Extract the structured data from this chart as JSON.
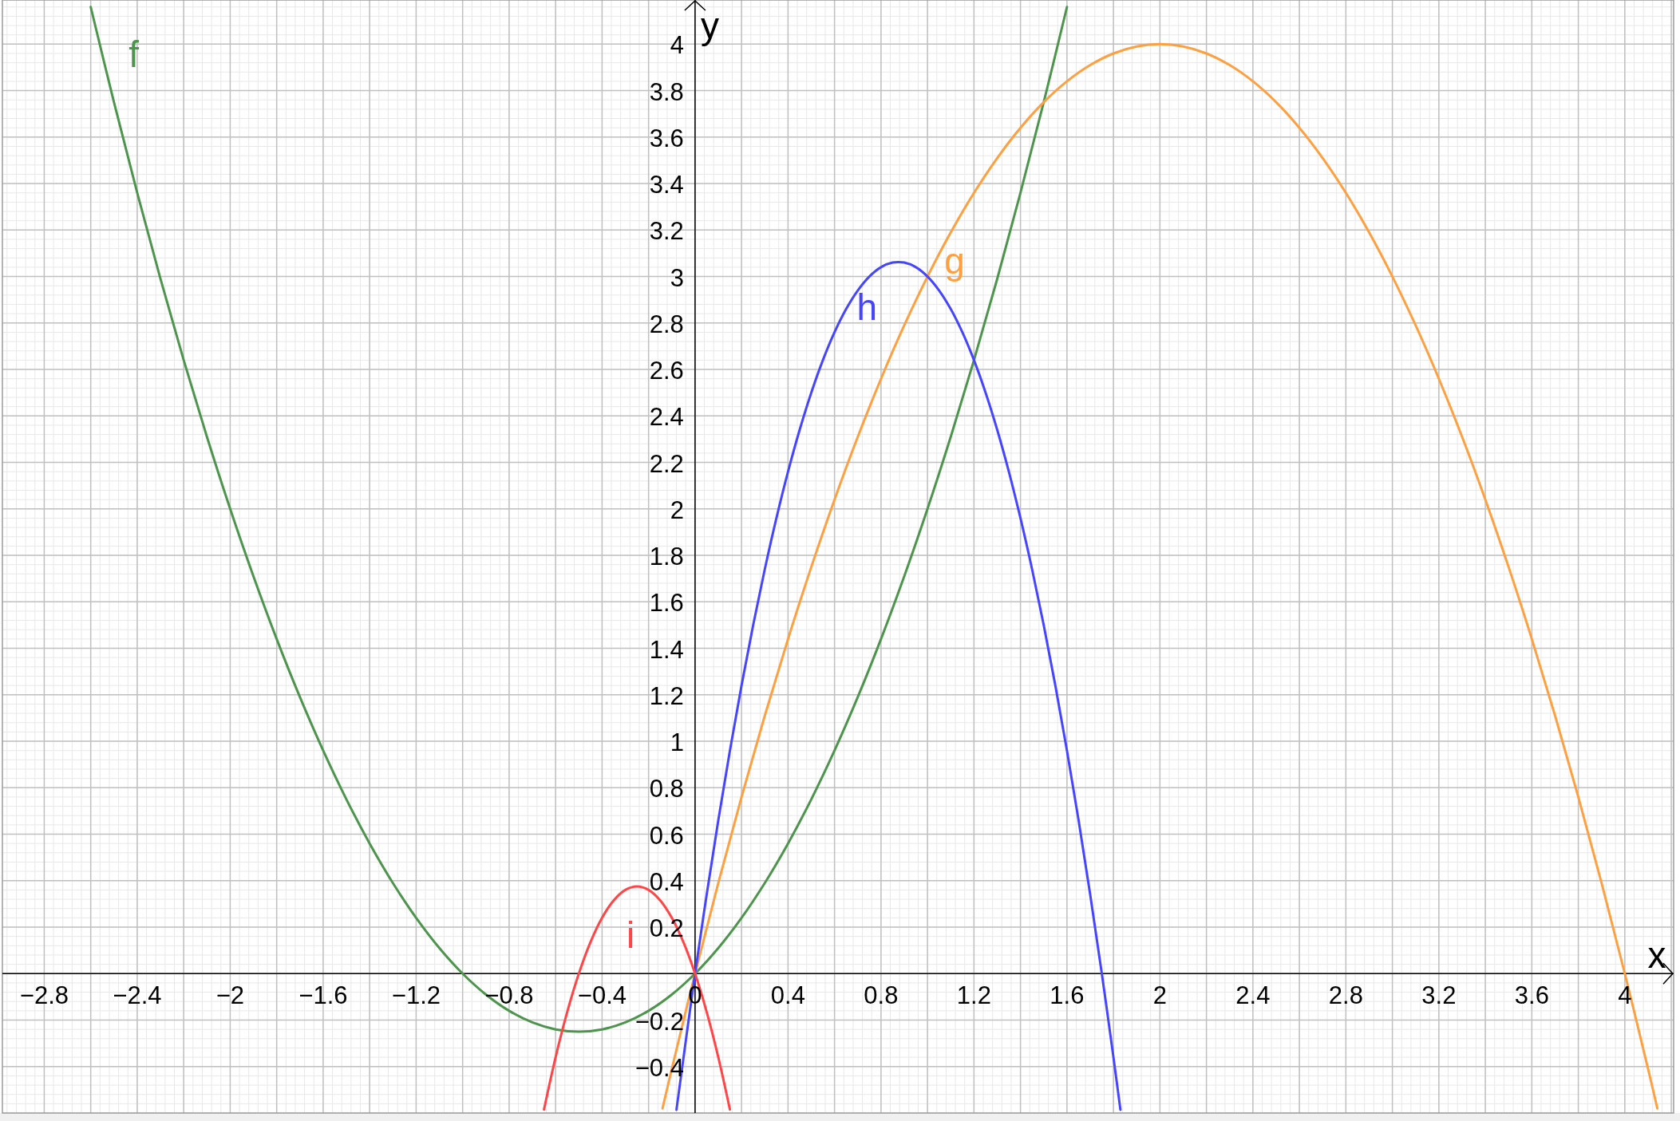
{
  "chart_data": {
    "type": "line",
    "xlabel": "x",
    "ylabel": "y",
    "xlim": [
      -2.98,
      4.21
    ],
    "ylim": [
      -0.6,
      4.19
    ],
    "grid": true,
    "xticks": [
      {
        "value": -2.8,
        "label": "−2.8"
      },
      {
        "value": -2.6,
        "label": null
      },
      {
        "value": -2.4,
        "label": "−2.4"
      },
      {
        "value": -2.2,
        "label": null
      },
      {
        "value": -2,
        "label": "−2"
      },
      {
        "value": -1.8,
        "label": null
      },
      {
        "value": -1.6,
        "label": "−1.6"
      },
      {
        "value": -1.4,
        "label": null
      },
      {
        "value": -1.2,
        "label": "−1.2"
      },
      {
        "value": -1,
        "label": null
      },
      {
        "value": -0.8,
        "label": "−0.8"
      },
      {
        "value": -0.6,
        "label": null
      },
      {
        "value": -0.4,
        "label": "−0.4"
      },
      {
        "value": -0.2,
        "label": null
      },
      0,
      {
        "value": 0.2,
        "label": null
      },
      0.4,
      {
        "value": 0.6,
        "label": null
      },
      0.8,
      {
        "value": 1,
        "label": null
      },
      1.2,
      {
        "value": 1.4,
        "label": null
      },
      1.6,
      {
        "value": 1.8,
        "label": null
      },
      2,
      {
        "value": 2.2,
        "label": null
      },
      2.4,
      {
        "value": 2.6,
        "label": null
      },
      2.8,
      {
        "value": 3,
        "label": null
      },
      3.2,
      {
        "value": 3.4,
        "label": null
      },
      3.6,
      {
        "value": 3.8,
        "label": null
      },
      4,
      {
        "value": 4.2,
        "label": null
      }
    ],
    "yticks": [
      {
        "value": -0.4,
        "label": "−0.4"
      },
      {
        "value": -0.2,
        "label": "−0.2"
      },
      {
        "value": 0,
        "label": null
      },
      0.2,
      0.4,
      0.6,
      0.8,
      1,
      1.2,
      1.4,
      1.6,
      1.8,
      2,
      2.2,
      2.4,
      2.6,
      2.8,
      3,
      3.2,
      3.4,
      3.6,
      3.8,
      4
    ],
    "series": [
      {
        "name": "f",
        "color": "#4d944d",
        "x": [
          -2.6,
          -2.5,
          -2.4,
          -2.3,
          -2.2,
          -2.1,
          -2,
          -1.9,
          -1.8,
          -1.7,
          -1.6,
          -1.5,
          -1.4,
          -1.3,
          -1.2,
          -1.1,
          -1,
          -0.9,
          -0.8,
          -0.7,
          -0.6,
          -0.5,
          -0.4,
          -0.3,
          -0.2,
          -0.1,
          0,
          0.1,
          0.2,
          0.3,
          0.4,
          0.5,
          0.6,
          0.7,
          0.8,
          0.9,
          1,
          1.1,
          1.2,
          1.3,
          1.4,
          1.5,
          1.6
        ],
        "values": [
          4.16,
          3.75,
          3.36,
          2.99,
          2.64,
          2.31,
          2,
          1.71,
          1.44,
          1.19,
          0.96,
          0.75,
          0.56,
          0.39,
          0.24,
          0.11,
          0,
          -0.09,
          -0.16,
          -0.21,
          -0.24,
          -0.25,
          -0.24,
          -0.21,
          -0.16,
          -0.09,
          0,
          0.11,
          0.24,
          0.39,
          0.56,
          0.75,
          0.96,
          1.19,
          1.44,
          1.71,
          2,
          2.31,
          2.64,
          2.99,
          3.36,
          3.75,
          4.16
        ]
      },
      {
        "name": "g",
        "color": "#ffa040",
        "x": [
          -0.14,
          -0.1,
          0,
          0.1,
          0.2,
          0.3,
          0.4,
          0.5,
          0.6,
          0.7,
          0.8,
          0.9,
          1,
          1.1,
          1.2,
          1.3,
          1.4,
          1.5,
          1.6,
          1.7,
          1.8,
          1.9,
          2,
          2.1,
          2.2,
          2.3,
          2.4,
          2.5,
          2.6,
          2.7,
          2.8,
          2.9,
          3,
          3.1,
          3.2,
          3.3,
          3.4,
          3.5,
          3.6,
          3.7,
          3.8,
          3.9,
          4,
          4.1,
          4.14
        ],
        "values": [
          -0.58,
          -0.41,
          0,
          0.39,
          0.76,
          1.11,
          1.44,
          1.75,
          2.04,
          2.31,
          2.56,
          2.79,
          3,
          3.19,
          3.36,
          3.51,
          3.64,
          3.75,
          3.84,
          3.91,
          3.96,
          3.99,
          4,
          3.99,
          3.96,
          3.91,
          3.84,
          3.75,
          3.64,
          3.51,
          3.36,
          3.19,
          3,
          2.79,
          2.56,
          2.31,
          2.04,
          1.75,
          1.44,
          1.11,
          0.76,
          0.39,
          0,
          -0.41,
          -0.58
        ]
      },
      {
        "name": "h",
        "color": "#4545ff",
        "x": [
          -0.08,
          0,
          0.05,
          0.1,
          0.15,
          0.2,
          0.25,
          0.3,
          0.35,
          0.4,
          0.45,
          0.5,
          0.55,
          0.6,
          0.65,
          0.7,
          0.75,
          0.8,
          0.85,
          0.9,
          0.95,
          1,
          1.05,
          1.1,
          1.15,
          1.2,
          1.25,
          1.3,
          1.35,
          1.4,
          1.45,
          1.5,
          1.55,
          1.6,
          1.65,
          1.7,
          1.75,
          1.8,
          1.83
        ],
        "values": [
          -0.586,
          0,
          0.34,
          0.66,
          0.96,
          1.24,
          1.5,
          1.74,
          1.96,
          2.16,
          2.34,
          2.5,
          2.64,
          2.76,
          2.86,
          2.94,
          3,
          3.04,
          3.06,
          3.06,
          3.04,
          3,
          2.94,
          2.86,
          2.76,
          2.64,
          2.5,
          2.34,
          2.16,
          1.96,
          1.74,
          1.5,
          1.24,
          0.96,
          0.66,
          0.34,
          0,
          -0.36,
          -0.586
        ]
      },
      {
        "name": "i",
        "color": "#ff4545",
        "x": [
          -0.65,
          -0.6,
          -0.55,
          -0.5,
          -0.45,
          -0.4,
          -0.35,
          -0.3,
          -0.25,
          -0.2,
          -0.15,
          -0.1,
          -0.05,
          0,
          0.05,
          0.1,
          0.15
        ],
        "values": [
          -0.585,
          -0.36,
          -0.165,
          0,
          0.135,
          0.24,
          0.315,
          0.36,
          0.375,
          0.36,
          0.315,
          0.24,
          0.135,
          0,
          -0.165,
          -0.36,
          -0.585
        ]
      }
    ]
  }
}
